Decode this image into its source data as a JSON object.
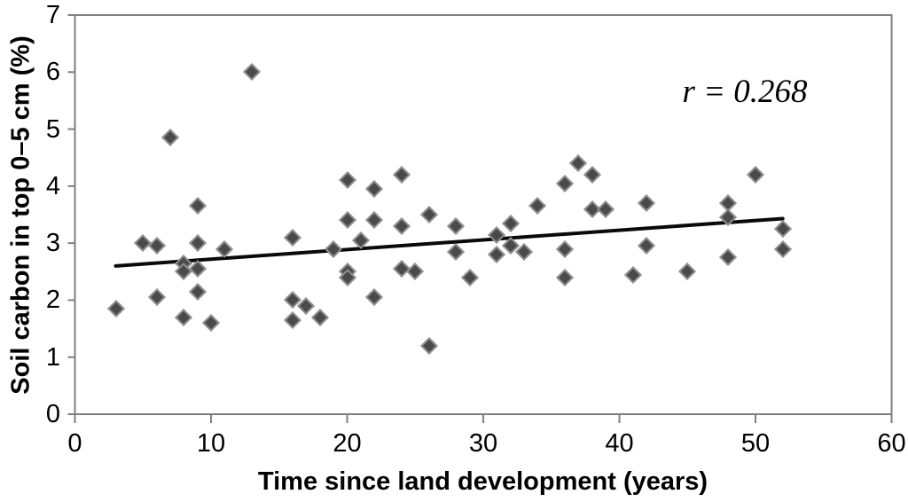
{
  "chart_data": {
    "type": "scatter",
    "title": "",
    "xlabel": "Time since land development (years)",
    "ylabel": "Soil carbon in top 0–5 cm (%)",
    "annotation": "r = 0.268",
    "xlim": [
      0,
      60
    ],
    "ylim": [
      0,
      7
    ],
    "x_ticks": [
      0,
      10,
      20,
      30,
      40,
      50,
      60
    ],
    "y_ticks": [
      0,
      1,
      2,
      3,
      4,
      5,
      6,
      7
    ],
    "grid": false,
    "legend": "none",
    "marker_shape": "diamond",
    "points": [
      [
        3,
        1.85
      ],
      [
        5,
        3.0
      ],
      [
        6,
        2.95
      ],
      [
        6,
        2.05
      ],
      [
        7,
        4.85
      ],
      [
        8,
        2.65
      ],
      [
        8,
        2.5
      ],
      [
        9,
        2.55
      ],
      [
        8,
        1.7
      ],
      [
        9,
        3.65
      ],
      [
        9,
        3.0
      ],
      [
        9,
        2.15
      ],
      [
        10,
        1.6
      ],
      [
        11,
        2.9
      ],
      [
        13,
        6.0
      ],
      [
        16,
        3.1
      ],
      [
        16,
        2.0
      ],
      [
        16,
        1.65
      ],
      [
        17,
        1.9
      ],
      [
        18,
        1.7
      ],
      [
        19,
        2.9
      ],
      [
        20,
        4.1
      ],
      [
        20,
        3.4
      ],
      [
        20,
        2.5
      ],
      [
        20,
        2.4
      ],
      [
        21,
        3.05
      ],
      [
        22,
        3.95
      ],
      [
        22,
        3.4
      ],
      [
        22,
        2.05
      ],
      [
        24,
        4.2
      ],
      [
        24,
        3.3
      ],
      [
        24,
        2.55
      ],
      [
        25,
        2.5
      ],
      [
        26,
        3.5
      ],
      [
        26,
        1.2
      ],
      [
        28,
        3.3
      ],
      [
        28,
        2.85
      ],
      [
        29,
        2.4
      ],
      [
        31,
        3.15
      ],
      [
        31,
        2.8
      ],
      [
        32,
        3.35
      ],
      [
        32,
        2.95
      ],
      [
        33,
        2.85
      ],
      [
        34,
        3.65
      ],
      [
        36,
        4.05
      ],
      [
        36,
        2.9
      ],
      [
        36,
        2.4
      ],
      [
        37,
        4.4
      ],
      [
        38,
        4.2
      ],
      [
        38,
        3.6
      ],
      [
        39,
        3.6
      ],
      [
        41,
        2.45
      ],
      [
        42,
        3.7
      ],
      [
        42,
        2.95
      ],
      [
        45,
        2.5
      ],
      [
        48,
        3.7
      ],
      [
        48,
        3.45
      ],
      [
        48,
        2.75
      ],
      [
        50,
        4.2
      ],
      [
        52,
        3.25
      ],
      [
        52,
        2.9
      ]
    ],
    "trendline": {
      "x1": 3,
      "y1": 2.6,
      "x2": 52,
      "y2": 3.43
    },
    "colors": {
      "marker_fill": "#4a4a4a",
      "marker_border": "#8f8f8f",
      "trend_line": "#0a0a0a",
      "axis": "#7f7f7f",
      "text": "#000000",
      "background": "#ffffff"
    }
  }
}
